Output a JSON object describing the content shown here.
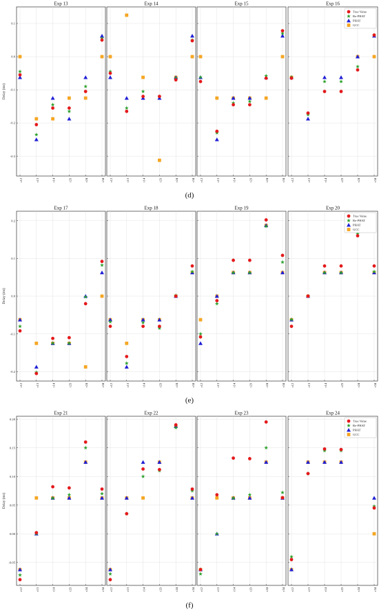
{
  "figure": {
    "row_labels": [
      "(d)",
      "(e)",
      "(f)"
    ]
  },
  "chart_data": [
    {
      "type": "scatter",
      "title": "Exp 13",
      "ylabel": "Delay (ms)",
      "ylim": [
        -0.36,
        0.15
      ],
      "yticks": [
        0.1,
        0.0,
        -0.1,
        -0.2,
        -0.3
      ],
      "ytick_labels": [
        "0.1",
        "0.0",
        "-0.1",
        "-0.2",
        "-0.3"
      ],
      "categories": [
        "τ12",
        "τ13",
        "τ14",
        "τ23",
        "τ24",
        "τ34"
      ],
      "grid": true,
      "series": [
        {
          "name": "True Value",
          "color": "#e41a1c",
          "marker": "circle",
          "values": [
            -0.055,
            -0.205,
            -0.155,
            -0.155,
            -0.105,
            0.05
          ]
        },
        {
          "name": "Re-PHAT",
          "color": "#2ca02c",
          "marker": "star",
          "values": [
            -0.045,
            -0.235,
            -0.145,
            -0.165,
            -0.09,
            0.055
          ]
        },
        {
          "name": "PHAT",
          "color": "#1f1fd6",
          "marker": "triangle",
          "values": [
            -0.0625,
            -0.25,
            -0.125,
            -0.1875,
            -0.0625,
            0.0625
          ]
        },
        {
          "name": "GCC",
          "color": "#f5a623",
          "marker": "square",
          "values": [
            0.0,
            -0.1875,
            -0.1875,
            -0.125,
            -0.125,
            0.0
          ]
        }
      ]
    },
    {
      "type": "scatter",
      "title": "Exp 14",
      "ylim": [
        -0.36,
        0.15
      ],
      "categories": [
        "τ12",
        "τ13",
        "τ14",
        "τ23",
        "τ24",
        "τ34"
      ],
      "grid": true,
      "series": [
        {
          "name": "True Value",
          "color": "#e41a1c",
          "marker": "circle",
          "values": [
            -0.05,
            -0.165,
            -0.12,
            -0.12,
            -0.07,
            0.048
          ]
        },
        {
          "name": "Re-PHAT",
          "color": "#2ca02c",
          "marker": "star",
          "values": [
            -0.045,
            -0.155,
            -0.105,
            -0.12,
            -0.065,
            0.05
          ]
        },
        {
          "name": "PHAT",
          "color": "#1f1fd6",
          "marker": "triangle",
          "values": [
            -0.0625,
            -0.125,
            -0.125,
            -0.125,
            -0.0625,
            0.0625
          ]
        },
        {
          "name": "GCC",
          "color": "#f5a623",
          "marker": "square",
          "values": [
            0.0,
            0.125,
            -0.0625,
            -0.3125,
            -0.0625,
            0.0
          ]
        }
      ]
    },
    {
      "type": "scatter",
      "title": "Exp 15",
      "ylim": [
        -0.36,
        0.15
      ],
      "categories": [
        "τ12",
        "τ13",
        "τ14",
        "τ23",
        "τ24",
        "τ34"
      ],
      "grid": true,
      "series": [
        {
          "name": "True Value",
          "color": "#e41a1c",
          "marker": "circle",
          "values": [
            -0.075,
            -0.225,
            -0.145,
            -0.145,
            -0.065,
            0.078
          ]
        },
        {
          "name": "Re-PHAT",
          "color": "#2ca02c",
          "marker": "star",
          "values": [
            -0.062,
            -0.23,
            -0.14,
            -0.135,
            -0.058,
            0.07
          ]
        },
        {
          "name": "PHAT",
          "color": "#1f1fd6",
          "marker": "triangle",
          "values": [
            -0.0625,
            -0.25,
            -0.125,
            -0.125,
            -0.0625,
            0.0625
          ]
        },
        {
          "name": "GCC",
          "color": "#f5a623",
          "marker": "square",
          "values": [
            0.0,
            -0.125,
            -0.125,
            -0.125,
            -0.125,
            0.0
          ]
        }
      ]
    },
    {
      "type": "scatter",
      "title": "Exp 16",
      "ylim": [
        -0.36,
        0.15
      ],
      "legend": "top-right",
      "categories": [
        "τ12",
        "τ13",
        "τ14",
        "τ23",
        "τ24",
        "τ34"
      ],
      "grid": true,
      "series": [
        {
          "name": "True Value",
          "color": "#e41a1c",
          "marker": "circle",
          "values": [
            -0.065,
            -0.17,
            -0.105,
            -0.105,
            -0.04,
            0.065
          ]
        },
        {
          "name": "Re-PHAT",
          "color": "#2ca02c",
          "marker": "star",
          "values": [
            -0.062,
            -0.175,
            -0.075,
            -0.075,
            -0.03,
            0.065
          ]
        },
        {
          "name": "PHAT",
          "color": "#1f1fd6",
          "marker": "triangle",
          "values": [
            -0.0625,
            -0.1875,
            -0.0625,
            -0.0625,
            0.0,
            0.0625
          ]
        },
        {
          "name": "GCC",
          "color": "#f5a623",
          "marker": "square",
          "values": [
            -0.0625,
            null,
            null,
            null,
            0.0,
            0.0
          ]
        }
      ]
    },
    {
      "type": "scatter",
      "title": "Exp 17",
      "ylabel": "Delay (ms)",
      "ylim": [
        -0.225,
        0.225
      ],
      "yticks": [
        0.2,
        0.1,
        0.0,
        -0.1,
        -0.2
      ],
      "ytick_labels": [
        "0.2",
        "0.1",
        "0.0",
        "-0.1",
        "-0.2"
      ],
      "categories": [
        "τ12",
        "τ13",
        "τ14",
        "τ23",
        "τ24",
        "τ34"
      ],
      "grid": true,
      "series": [
        {
          "name": "True Value",
          "color": "#e41a1c",
          "marker": "circle",
          "values": [
            -0.092,
            -0.205,
            -0.112,
            -0.11,
            -0.02,
            0.092
          ]
        },
        {
          "name": "Re-PHAT",
          "color": "#2ca02c",
          "marker": "star",
          "values": [
            -0.08,
            -0.202,
            -0.125,
            -0.125,
            -0.002,
            0.082
          ]
        },
        {
          "name": "PHAT",
          "color": "#1f1fd6",
          "marker": "triangle",
          "values": [
            -0.0625,
            -0.1875,
            -0.125,
            -0.125,
            0.0,
            0.0625
          ]
        },
        {
          "name": "GCC",
          "color": "#f5a623",
          "marker": "square",
          "values": [
            -0.0625,
            -0.125,
            -0.125,
            -0.125,
            -0.1875,
            0.0
          ]
        }
      ]
    },
    {
      "type": "scatter",
      "title": "Exp 18",
      "ylim": [
        -0.225,
        0.225
      ],
      "categories": [
        "τ12",
        "τ13",
        "τ14",
        "τ23",
        "τ24",
        "τ34"
      ],
      "grid": true,
      "series": [
        {
          "name": "True Value",
          "color": "#e41a1c",
          "marker": "circle",
          "values": [
            -0.08,
            -0.16,
            -0.08,
            -0.08,
            0.0,
            0.08
          ]
        },
        {
          "name": "Re-PHAT",
          "color": "#2ca02c",
          "marker": "star",
          "values": [
            -0.068,
            -0.178,
            -0.07,
            -0.085,
            0.002,
            0.065
          ]
        },
        {
          "name": "PHAT",
          "color": "#1f1fd6",
          "marker": "triangle",
          "values": [
            -0.0625,
            -0.1875,
            -0.0625,
            -0.0625,
            0.0,
            0.0625
          ]
        },
        {
          "name": "GCC",
          "color": "#f5a623",
          "marker": "square",
          "values": [
            -0.0625,
            -0.125,
            -0.0625,
            -0.0625,
            0.0,
            0.0625
          ]
        }
      ]
    },
    {
      "type": "scatter",
      "title": "Exp 19",
      "ylim": [
        -0.225,
        0.225
      ],
      "categories": [
        "τ12",
        "τ13",
        "τ14",
        "τ23",
        "τ24",
        "τ34"
      ],
      "grid": true,
      "series": [
        {
          "name": "True Value",
          "color": "#e41a1c",
          "marker": "circle",
          "values": [
            -0.108,
            -0.012,
            0.095,
            0.095,
            0.202,
            0.108
          ]
        },
        {
          "name": "Re-PHAT",
          "color": "#2ca02c",
          "marker": "star",
          "values": [
            -0.1,
            -0.02,
            0.062,
            0.062,
            0.185,
            0.09
          ]
        },
        {
          "name": "PHAT",
          "color": "#1f1fd6",
          "marker": "triangle",
          "values": [
            -0.125,
            0.0,
            0.0625,
            0.0625,
            0.1875,
            0.0625
          ]
        },
        {
          "name": "GCC",
          "color": "#f5a623",
          "marker": "square",
          "values": [
            -0.0625,
            0.0,
            0.0625,
            0.0625,
            0.1875,
            0.0625
          ]
        }
      ]
    },
    {
      "type": "scatter",
      "title": "Exp 20",
      "ylim": [
        -0.225,
        0.225
      ],
      "legend": "top-right",
      "categories": [
        "τ12",
        "τ13",
        "τ14",
        "τ23",
        "τ24",
        "τ34"
      ],
      "grid": true,
      "series": [
        {
          "name": "True Value",
          "color": "#e41a1c",
          "marker": "circle",
          "values": [
            -0.08,
            0.0,
            0.08,
            0.08,
            0.16,
            0.08
          ]
        },
        {
          "name": "Re-PHAT",
          "color": "#2ca02c",
          "marker": "star",
          "values": [
            -0.062,
            0.0,
            0.062,
            0.062,
            0.165,
            0.065
          ]
        },
        {
          "name": "PHAT",
          "color": "#1f1fd6",
          "marker": "triangle",
          "values": [
            -0.0625,
            0.0,
            0.0625,
            0.0625,
            0.1875,
            0.0625
          ]
        },
        {
          "name": "GCC",
          "color": "#f5a623",
          "marker": "square",
          "values": [
            -0.0625,
            0.0,
            0.0625,
            0.0625,
            0.1875,
            0.0625
          ]
        }
      ]
    },
    {
      "type": "scatter",
      "title": "Exp 21",
      "ylabel": "Delay (ms)",
      "ylim": [
        -0.09,
        0.205
      ],
      "yticks": [
        0.2,
        0.15,
        0.1,
        0.05,
        0.0,
        -0.05
      ],
      "ytick_labels": [
        "0.20",
        "0.15",
        "0.10",
        "0.05",
        "0.00",
        "-0.05"
      ],
      "categories": [
        "τ12",
        "τ13",
        "τ14",
        "τ23",
        "τ24",
        "τ34"
      ],
      "grid": true,
      "series": [
        {
          "name": "True Value",
          "color": "#e41a1c",
          "marker": "circle",
          "values": [
            -0.08,
            0.002,
            0.082,
            0.08,
            0.16,
            0.078
          ]
        },
        {
          "name": "Re-PHAT",
          "color": "#2ca02c",
          "marker": "star",
          "values": [
            -0.072,
            0.0,
            0.062,
            0.068,
            0.15,
            0.07
          ]
        },
        {
          "name": "PHAT",
          "color": "#1f1fd6",
          "marker": "triangle",
          "values": [
            -0.0625,
            0.0,
            0.0625,
            0.0625,
            0.125,
            0.0625
          ]
        },
        {
          "name": "GCC",
          "color": "#f5a623",
          "marker": "square",
          "values": [
            -0.0625,
            0.0625,
            0.0625,
            0.0625,
            0.125,
            0.0625
          ]
        }
      ]
    },
    {
      "type": "scatter",
      "title": "Exp 22",
      "ylim": [
        -0.09,
        0.205
      ],
      "categories": [
        "τ12",
        "τ13",
        "τ14",
        "τ23",
        "τ24",
        "τ34"
      ],
      "grid": true,
      "series": [
        {
          "name": "True Value",
          "color": "#e41a1c",
          "marker": "circle",
          "values": [
            -0.08,
            0.035,
            0.113,
            0.112,
            0.19,
            0.078
          ]
        },
        {
          "name": "Re-PHAT",
          "color": "#2ca02c",
          "marker": "star",
          "values": [
            -0.07,
            0.035,
            0.1,
            0.11,
            0.185,
            0.075
          ]
        },
        {
          "name": "PHAT",
          "color": "#1f1fd6",
          "marker": "triangle",
          "values": [
            -0.0625,
            0.0625,
            0.125,
            0.125,
            0.1875,
            0.0625
          ]
        },
        {
          "name": "GCC",
          "color": "#f5a623",
          "marker": "square",
          "values": [
            -0.0625,
            0.0625,
            0.0625,
            0.125,
            0.1875,
            0.0625
          ]
        }
      ]
    },
    {
      "type": "scatter",
      "title": "Exp 23",
      "ylim": [
        -0.09,
        0.205
      ],
      "categories": [
        "τ12",
        "τ13",
        "τ14",
        "τ23",
        "τ24",
        "τ34"
      ],
      "grid": true,
      "series": [
        {
          "name": "True Value",
          "color": "#e41a1c",
          "marker": "circle",
          "values": [
            -0.0625,
            0.068,
            0.132,
            0.131,
            0.195,
            0.063
          ]
        },
        {
          "name": "Re-PHAT",
          "color": "#2ca02c",
          "marker": "star",
          "values": [
            -0.07,
            0.0,
            0.062,
            0.068,
            0.15,
            0.072
          ]
        },
        {
          "name": "PHAT",
          "color": "#1f1fd6",
          "marker": "triangle",
          "values": [
            -0.0625,
            0.0,
            0.0625,
            0.0625,
            0.125,
            0.0625
          ]
        },
        {
          "name": "GCC",
          "color": "#f5a623",
          "marker": "square",
          "values": [
            -0.0625,
            0.0625,
            0.0625,
            0.0625,
            0.125,
            0.0625
          ]
        }
      ]
    },
    {
      "type": "scatter",
      "title": "Exp 24",
      "ylim": [
        -0.09,
        0.205
      ],
      "legend": "top-right",
      "categories": [
        "τ12",
        "τ13",
        "τ14",
        "τ23",
        "τ24",
        "τ34"
      ],
      "grid": true,
      "series": [
        {
          "name": "True Value",
          "color": "#e41a1c",
          "marker": "circle",
          "values": [
            -0.045,
            0.105,
            0.148,
            0.147,
            0.19,
            0.045
          ]
        },
        {
          "name": "Re-PHAT",
          "color": "#2ca02c",
          "marker": "star",
          "values": [
            -0.04,
            0.105,
            0.145,
            0.145,
            0.19,
            0.048
          ]
        },
        {
          "name": "PHAT",
          "color": "#1f1fd6",
          "marker": "triangle",
          "values": [
            -0.0625,
            0.125,
            0.125,
            0.125,
            0.1875,
            0.0625
          ]
        },
        {
          "name": "GCC",
          "color": "#f5a623",
          "marker": "square",
          "values": [
            -0.0625,
            0.125,
            0.125,
            0.125,
            0.1875,
            0.0
          ]
        }
      ]
    }
  ]
}
